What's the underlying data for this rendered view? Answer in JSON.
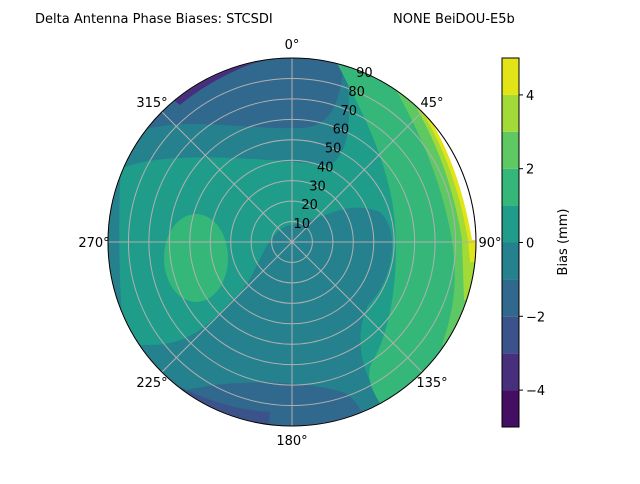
{
  "chart_data": {
    "type": "polar-contour",
    "title_left": "Delta Antenna Phase Biases: STCSDI",
    "title_right": "NONE BeiDOU-E5b",
    "theta_zero": "top",
    "theta_direction": "clockwise",
    "theta_ticks": [
      "0°",
      "45°",
      "90°",
      "135°",
      "180°",
      "225°",
      "270°",
      "315°"
    ],
    "radial_ticks": [
      "10",
      "20",
      "30",
      "40",
      "50",
      "60",
      "70",
      "80",
      "90"
    ],
    "rlim": [
      0,
      90
    ],
    "grid": true,
    "colorbar": {
      "label": "Bias (mm)",
      "range": [
        -5,
        5
      ],
      "levels": [
        -5,
        -4,
        -3,
        -2,
        -1,
        0,
        1,
        2,
        3,
        4,
        5
      ],
      "ticks": [
        "−4",
        "−2",
        "0",
        "2",
        "4"
      ],
      "tick_values": [
        -4,
        -2,
        0,
        2,
        4
      ],
      "colormap": "viridis",
      "colors": [
        "#440f62",
        "#472f7d",
        "#3b528b",
        "#31688e",
        "#26818e",
        "#1f9d8a",
        "#35b779",
        "#5ec962",
        "#a2da37",
        "#e2e418"
      ]
    },
    "regions_description_values": {
      "center": "0 to 1",
      "lower_half": "-1 to 0",
      "top_and_bottom_edges": "-2 to -1",
      "upper_left_edge": "-4 to -2",
      "left_blob": "1 to 2",
      "east_edge": "1 to 5"
    }
  }
}
